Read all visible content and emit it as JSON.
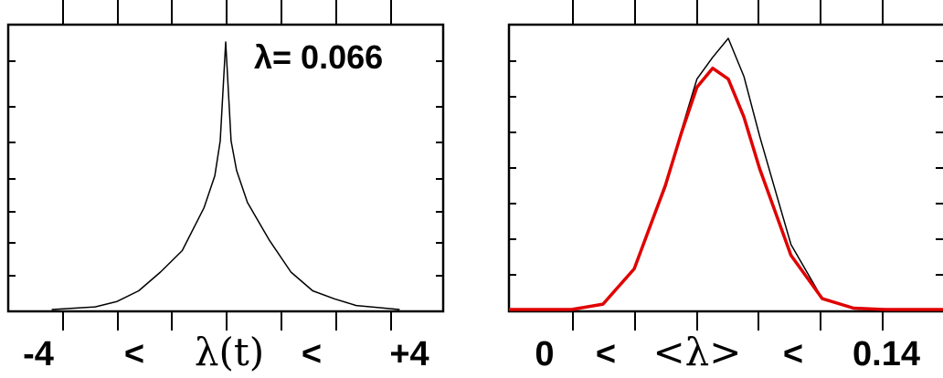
{
  "chart_data": [
    {
      "type": "line",
      "annotation": "λ= 0.066",
      "x_labels": [
        "-4",
        "<",
        "λ(t)",
        "<",
        "+4"
      ],
      "xlim": [
        -4,
        4
      ],
      "grid": false,
      "series": [
        {
          "color": "#000000",
          "x": [
            -3.2,
            -2.4,
            -2.0,
            -1.6,
            -1.2,
            -0.8,
            -0.4,
            -0.2,
            -0.1,
            0.0,
            0.1,
            0.2,
            0.4,
            0.8,
            1.2,
            1.6,
            2.0,
            2.4,
            3.2
          ],
          "y": [
            0.0,
            0.01,
            0.03,
            0.07,
            0.14,
            0.22,
            0.38,
            0.5,
            0.63,
            1.0,
            0.63,
            0.52,
            0.4,
            0.26,
            0.14,
            0.07,
            0.04,
            0.015,
            0.0
          ]
        }
      ]
    },
    {
      "type": "line",
      "x_labels": [
        "0",
        "<",
        "<λ>",
        "<",
        "0.14"
      ],
      "xlim": [
        0,
        0.14
      ],
      "grid": false,
      "series": [
        {
          "color": "#000000",
          "x": [
            0.02,
            0.03,
            0.04,
            0.05,
            0.055,
            0.06,
            0.065,
            0.07,
            0.075,
            0.08,
            0.085,
            0.09,
            0.1,
            0.11,
            0.12
          ],
          "y": [
            0.0,
            0.02,
            0.15,
            0.45,
            0.66,
            0.85,
            0.93,
            1.0,
            0.86,
            0.64,
            0.44,
            0.24,
            0.04,
            0.005,
            0.0
          ]
        },
        {
          "color": "#e00000",
          "x": [
            0.0,
            0.02,
            0.03,
            0.04,
            0.05,
            0.055,
            0.06,
            0.065,
            0.07,
            0.075,
            0.08,
            0.09,
            0.1,
            0.11,
            0.12,
            0.14
          ],
          "y": [
            0.0,
            0.0,
            0.02,
            0.15,
            0.46,
            0.65,
            0.82,
            0.89,
            0.85,
            0.71,
            0.52,
            0.2,
            0.04,
            0.005,
            0.0,
            0.0
          ]
        }
      ]
    }
  ]
}
